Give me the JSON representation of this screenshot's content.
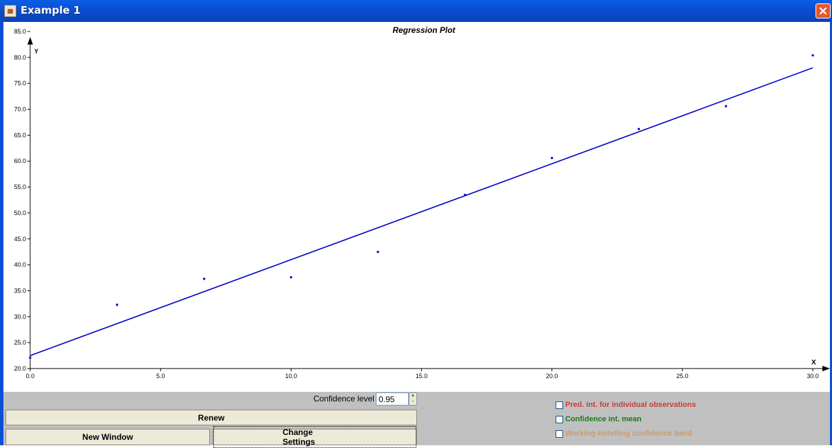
{
  "window": {
    "title": "Example 1"
  },
  "controls": {
    "confidence_label": "Confidence level",
    "confidence_value": "0.95",
    "spinner_up": "+",
    "spinner_down": "-",
    "renew_label": "Renew",
    "new_window_label": "New Window",
    "change_settings_label": "Change Settings",
    "checkboxes": [
      {
        "label": "Pred. int. for individual observations",
        "checked": false,
        "color": "#d03a3a"
      },
      {
        "label": "Confidence int. mean",
        "checked": false,
        "color": "#1a7a1a"
      },
      {
        "label": "Working-Hotelling confidence band",
        "checked": false,
        "color": "#c89c70"
      }
    ]
  },
  "chart_data": {
    "type": "scatter",
    "title": "Regression Plot",
    "xlabel": "X",
    "ylabel": "Y",
    "xlim": [
      0,
      30
    ],
    "ylim": [
      20,
      85
    ],
    "x_ticks": [
      "0.0",
      "5.0",
      "10.0",
      "15.0",
      "20.0",
      "25.0",
      "30.0"
    ],
    "y_ticks": [
      "20.0",
      "25.0",
      "30.0",
      "35.0",
      "40.0",
      "45.0",
      "50.0",
      "55.0",
      "60.0",
      "65.0",
      "70.0",
      "75.0",
      "80.0",
      "85.0"
    ],
    "points": [
      [
        0.0,
        22.1
      ],
      [
        3.33,
        32.3
      ],
      [
        6.67,
        37.3
      ],
      [
        10.0,
        37.6
      ],
      [
        13.33,
        42.5
      ],
      [
        16.67,
        53.5
      ],
      [
        20.0,
        60.6
      ],
      [
        23.33,
        66.2
      ],
      [
        26.67,
        70.6
      ],
      [
        30.0,
        80.4
      ]
    ],
    "regression_line": {
      "x": [
        0,
        30
      ],
      "y": [
        22.5,
        78.0
      ]
    },
    "series_color": "#0000cc",
    "grid": false
  }
}
